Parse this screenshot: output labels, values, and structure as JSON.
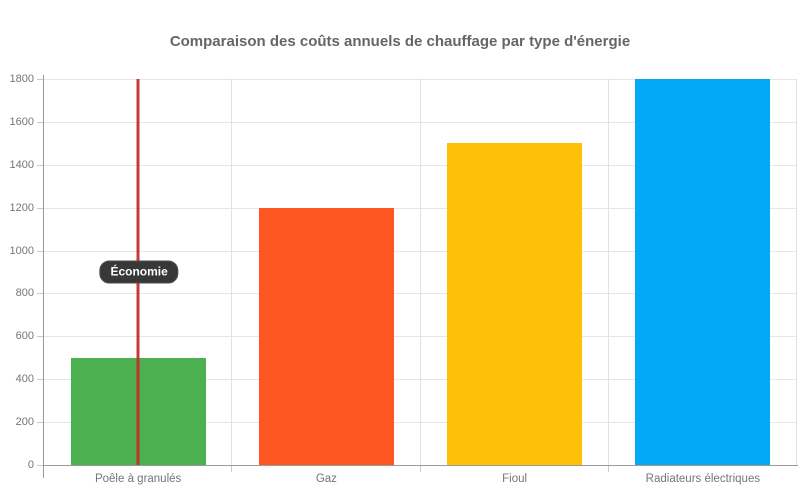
{
  "chart_data": {
    "type": "bar",
    "title": "Comparaison des coûts annuels de chauffage par type d'énergie",
    "categories": [
      "Poêle à granulés",
      "Gaz",
      "Fioul",
      "Radiateurs électriques"
    ],
    "values": [
      500,
      1200,
      1500,
      1800
    ],
    "bar_colors": [
      "#4caf50",
      "#ff5722",
      "#ffc107",
      "#03a9f4"
    ],
    "xlabel": "",
    "ylabel": "",
    "ylim": [
      0,
      1800
    ],
    "yticks": [
      0,
      200,
      400,
      600,
      800,
      1000,
      1200,
      1400,
      1600,
      1800
    ],
    "grid": true,
    "legend": "none",
    "annotation": {
      "label": "Économie",
      "line_color": "#c62828",
      "line_at_category": "Poêle à granulés",
      "label_y_value": 900
    }
  }
}
